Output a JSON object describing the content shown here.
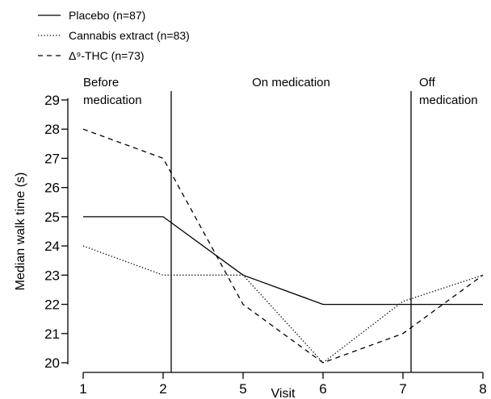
{
  "chart_data": {
    "type": "line",
    "categories": [
      "1",
      "2",
      "5",
      "6",
      "7",
      "8"
    ],
    "xlabel": "Visit",
    "ylabel": "Median walk time (s)",
    "ylim": [
      20,
      29
    ],
    "yticks": [
      20,
      21,
      22,
      23,
      24,
      25,
      26,
      27,
      28,
      29
    ],
    "grid": false,
    "legend_position": "top-left",
    "series": [
      {
        "name": "Placebo (n=87)",
        "style": "solid",
        "values": [
          25,
          25,
          23,
          22,
          22,
          22
        ]
      },
      {
        "name": "Cannabis extract (n=83)",
        "style": "dotted",
        "values": [
          24,
          23,
          23,
          20,
          22.1,
          23
        ]
      },
      {
        "name": "Δ⁹-THC (n=73)",
        "style": "dashed",
        "values": [
          28,
          27,
          22,
          20,
          21,
          23
        ]
      }
    ],
    "phases": [
      {
        "label_lines": [
          "Before",
          "medication"
        ]
      },
      {
        "label_lines": [
          "On medication"
        ]
      },
      {
        "label_lines": [
          "Off",
          "medication"
        ]
      }
    ],
    "phase_boundaries_after_category_index": [
      1,
      4
    ]
  }
}
